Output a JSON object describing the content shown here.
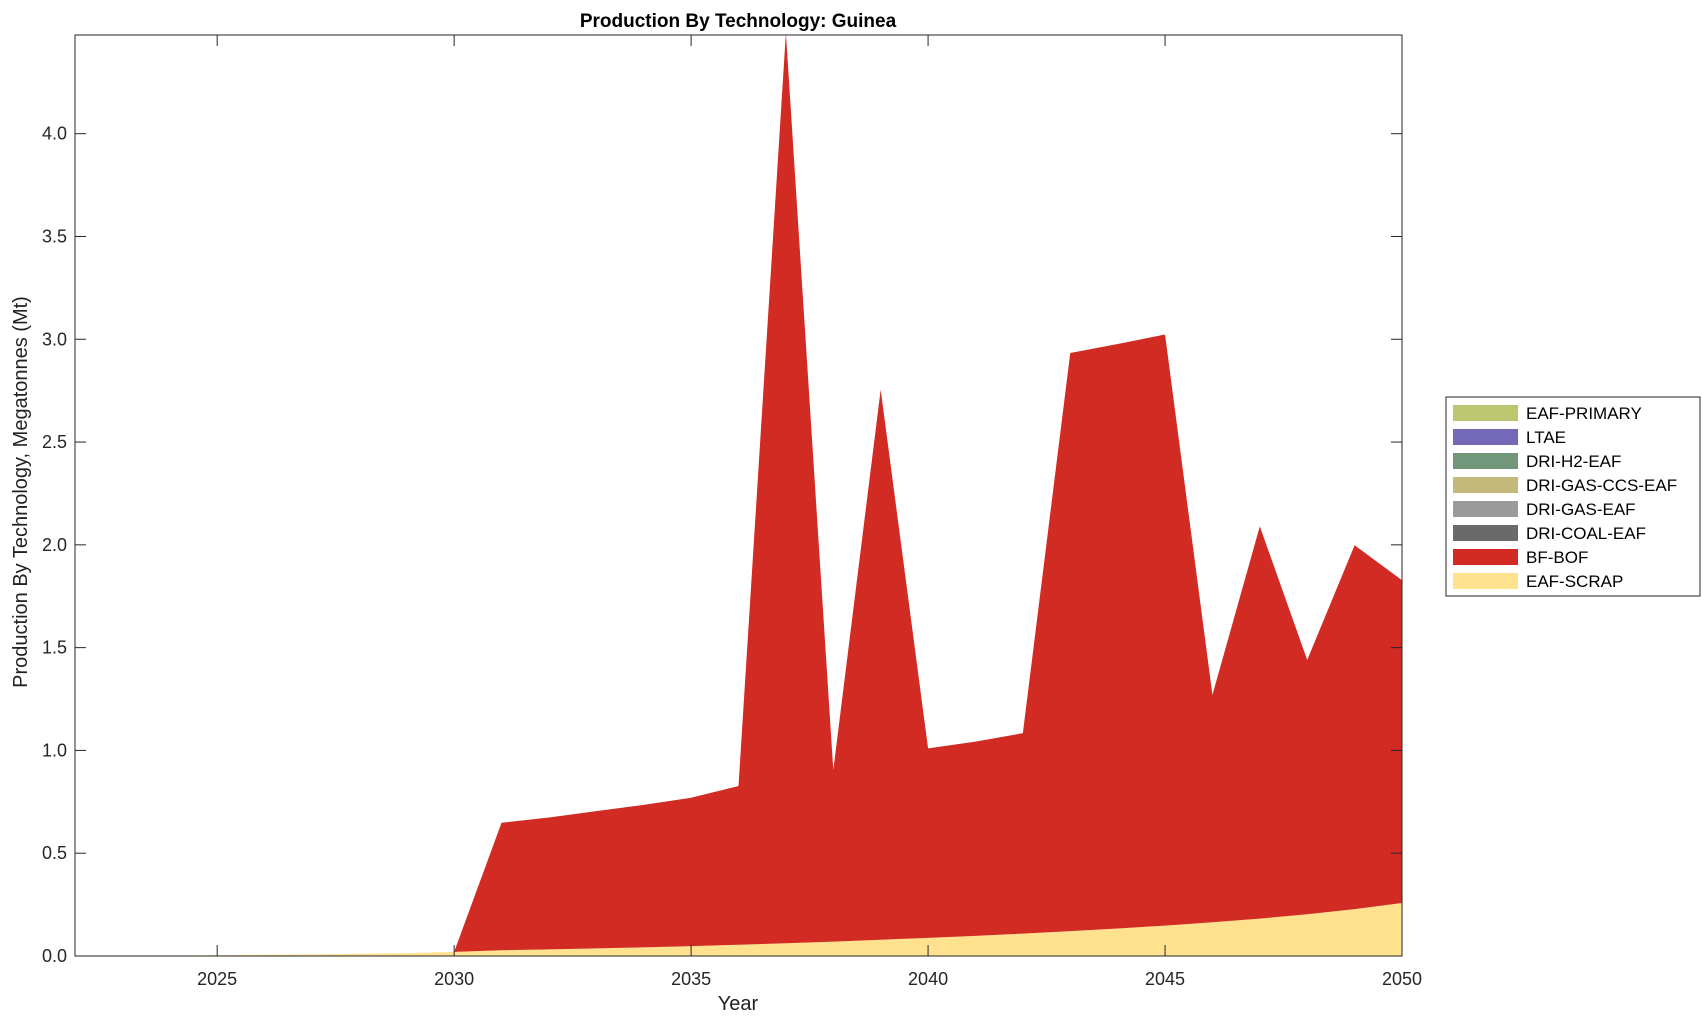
{
  "chart_data": {
    "type": "area",
    "title": "Production By Technology: Guinea",
    "xlabel": "Year",
    "ylabel": "Production By Technology, Megatonnes (Mt)",
    "xlim": [
      2022,
      2050
    ],
    "ylim": [
      0,
      4.48
    ],
    "xticks": [
      2025,
      2030,
      2035,
      2040,
      2045,
      2050
    ],
    "yticks": [
      0,
      0.5,
      1,
      1.5,
      2,
      2.5,
      3,
      3.5,
      4
    ],
    "ytick_labels": [
      "0.0",
      "0.5",
      "1.0",
      "1.5",
      "2.0",
      "2.5",
      "3.0",
      "3.5",
      "4.0"
    ],
    "grid": false,
    "legend_position": "outside-right",
    "x": [
      2022,
      2023,
      2024,
      2025,
      2026,
      2027,
      2028,
      2029,
      2030,
      2031,
      2032,
      2033,
      2034,
      2035,
      2036,
      2037,
      2038,
      2039,
      2040,
      2041,
      2042,
      2043,
      2044,
      2045,
      2046,
      2047,
      2048,
      2049,
      2050
    ],
    "series": [
      {
        "name": "EAF-SCRAP",
        "color": "#FFE18E",
        "values": [
          0,
          0.001,
          0.002,
          0.004,
          0.006,
          0.008,
          0.011,
          0.014,
          0.02,
          0.028,
          0.032,
          0.037,
          0.042,
          0.048,
          0.055,
          0.062,
          0.07,
          0.079,
          0.088,
          0.098,
          0.109,
          0.121,
          0.134,
          0.148,
          0.164,
          0.182,
          0.203,
          0.228,
          0.258
        ]
      },
      {
        "name": "BF-BOF",
        "color": "#D22B24",
        "values": [
          0,
          0,
          0,
          0,
          0,
          0,
          0,
          0,
          0,
          0.62,
          0.642,
          0.668,
          0.693,
          0.722,
          0.772,
          4.428,
          0.834,
          2.676,
          0.922,
          0.945,
          0.975,
          2.812,
          2.843,
          2.875,
          1.106,
          1.908,
          1.237,
          1.77,
          1.57
        ]
      },
      {
        "name": "DRI-COAL-EAF",
        "color": "#6A6A6A",
        "values": [
          0,
          0,
          0,
          0,
          0,
          0,
          0,
          0,
          0,
          0,
          0,
          0,
          0,
          0,
          0,
          0,
          0,
          0,
          0,
          0,
          0,
          0,
          0,
          0,
          0,
          0,
          0,
          0,
          0
        ]
      },
      {
        "name": "DRI-GAS-EAF",
        "color": "#9B9B9B",
        "values": [
          0,
          0,
          0,
          0,
          0,
          0,
          0,
          0,
          0,
          0,
          0,
          0,
          0,
          0,
          0,
          0,
          0,
          0,
          0,
          0,
          0,
          0,
          0,
          0,
          0,
          0,
          0,
          0,
          0
        ]
      },
      {
        "name": "DRI-GAS-CCS-EAF",
        "color": "#C4B97A",
        "values": [
          0,
          0,
          0,
          0,
          0,
          0,
          0,
          0,
          0,
          0,
          0,
          0,
          0,
          0,
          0,
          0,
          0,
          0,
          0,
          0,
          0,
          0,
          0,
          0,
          0,
          0,
          0,
          0,
          0
        ]
      },
      {
        "name": "DRI-H2-EAF",
        "color": "#729679",
        "values": [
          0,
          0,
          0,
          0,
          0,
          0,
          0,
          0,
          0,
          0,
          0,
          0,
          0,
          0,
          0,
          0,
          0,
          0,
          0,
          0,
          0,
          0,
          0,
          0,
          0,
          0,
          0,
          0,
          0
        ]
      },
      {
        "name": "LTAE",
        "color": "#7468B8",
        "values": [
          0,
          0,
          0,
          0,
          0,
          0,
          0,
          0,
          0,
          0,
          0,
          0,
          0,
          0,
          0,
          0,
          0,
          0,
          0,
          0,
          0,
          0,
          0,
          0,
          0,
          0,
          0,
          0,
          0
        ]
      },
      {
        "name": "EAF-PRIMARY",
        "color": "#BCC66E",
        "values": [
          0,
          0,
          0,
          0,
          0,
          0,
          0,
          0,
          0,
          0,
          0,
          0,
          0,
          0,
          0,
          0,
          0,
          0,
          0,
          0,
          0,
          0,
          0,
          0,
          0,
          0,
          0,
          0,
          0
        ]
      }
    ],
    "legend_order": [
      "EAF-PRIMARY",
      "LTAE",
      "DRI-H2-EAF",
      "DRI-GAS-CCS-EAF",
      "DRI-GAS-EAF",
      "DRI-COAL-EAF",
      "BF-BOF",
      "EAF-SCRAP"
    ]
  }
}
